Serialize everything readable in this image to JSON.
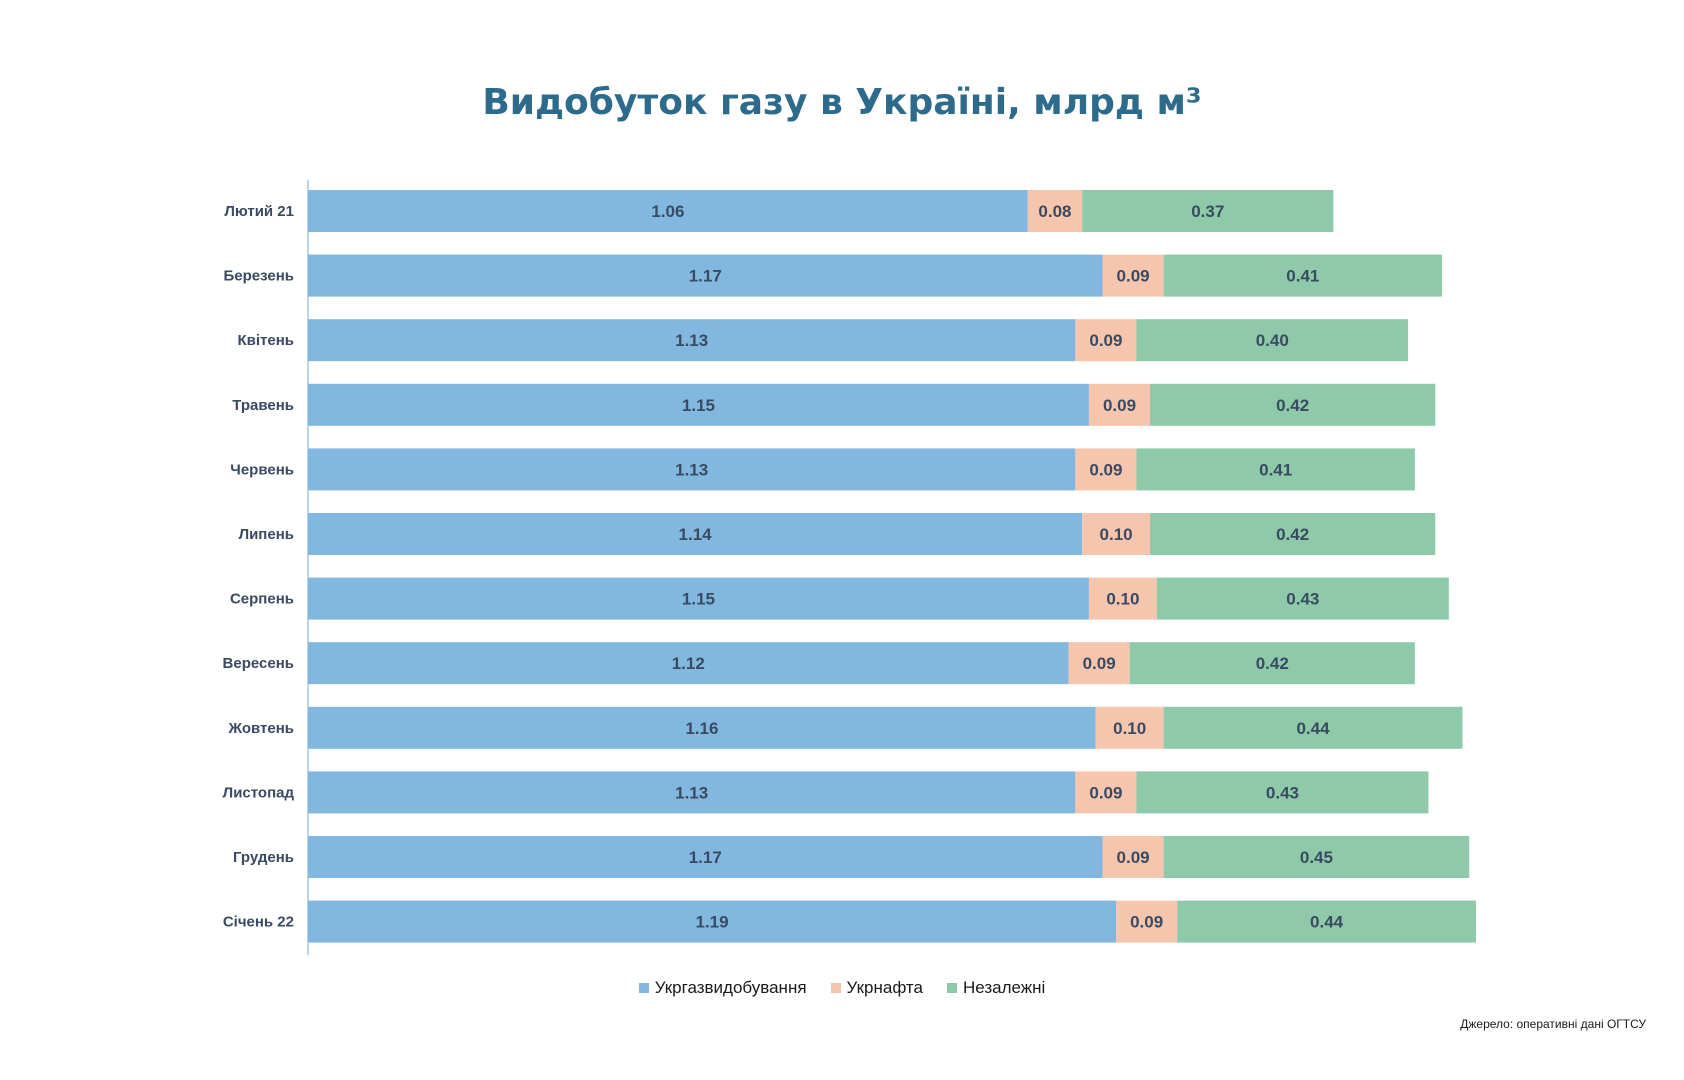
{
  "title": "Видобуток газу в Україні, млрд м³",
  "source": "Джерело: оперативні дані ОГТСУ",
  "colors": {
    "title": "#2c6b8c",
    "axis_label": "#3a4a63",
    "value_label": "#3a4a63",
    "axis_line": "#8fb8d4"
  },
  "chart_data": {
    "type": "bar",
    "orientation": "horizontal",
    "stacked": true,
    "title": "Видобуток газу в Україні, млрд м³",
    "categories": [
      "Лютий 21",
      "Березень",
      "Квітень",
      "Травень",
      "Червень",
      "Липень",
      "Серпень",
      "Вересень",
      "Жовтень",
      "Листопад",
      "Грудень",
      "Січень 22"
    ],
    "series": [
      {
        "name": "Укргазвидобування",
        "color": "#82b8e0",
        "values": [
          1.06,
          1.17,
          1.13,
          1.15,
          1.13,
          1.14,
          1.15,
          1.12,
          1.16,
          1.13,
          1.17,
          1.19
        ],
        "labels": [
          "1.06",
          "1.17",
          "1.13",
          "1.15",
          "1.13",
          "1.14",
          "1.15",
          "1.12",
          "1.16",
          "1.13",
          "1.17",
          "1.19"
        ]
      },
      {
        "name": "Укрнафта",
        "color": "#f5c6ad",
        "values": [
          0.08,
          0.09,
          0.09,
          0.09,
          0.09,
          0.1,
          0.1,
          0.09,
          0.1,
          0.09,
          0.09,
          0.09
        ],
        "labels": [
          "0.08",
          "0.09",
          "0.09",
          "0.09",
          "0.09",
          "0.10",
          "0.10",
          "0.09",
          "0.10",
          "0.09",
          "0.09",
          "0.09"
        ]
      },
      {
        "name": "Незалежні",
        "color": "#8ecaa9",
        "values": [
          0.37,
          0.41,
          0.4,
          0.42,
          0.41,
          0.42,
          0.43,
          0.42,
          0.44,
          0.43,
          0.45,
          0.44
        ],
        "labels": [
          "0.37",
          "0.41",
          "0.40",
          "0.42",
          "0.41",
          "0.42",
          "0.43",
          "0.42",
          "0.44",
          "0.43",
          "0.45",
          "0.44"
        ]
      }
    ],
    "xlim": [
      0,
      1.72
    ],
    "grid": false,
    "legend_position": "bottom"
  }
}
